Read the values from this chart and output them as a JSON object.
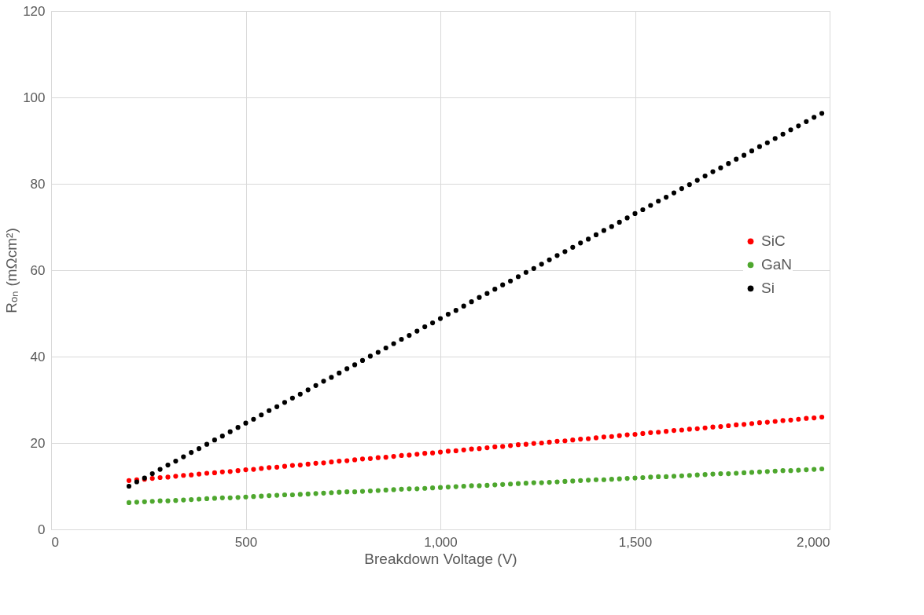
{
  "chart_data": {
    "type": "scatter",
    "xlabel": "Breakdown Voltage (V)",
    "ylabel": "Rₒₙ (mΩcm²)",
    "x": [
      200,
      220,
      240,
      260,
      280,
      300,
      320,
      340,
      360,
      380,
      400,
      420,
      440,
      460,
      480,
      500,
      520,
      540,
      560,
      580,
      600,
      620,
      640,
      660,
      680,
      700,
      720,
      740,
      760,
      780,
      800,
      820,
      840,
      860,
      880,
      900,
      920,
      940,
      960,
      980,
      1000,
      1020,
      1040,
      1060,
      1080,
      1100,
      1120,
      1140,
      1160,
      1180,
      1200,
      1220,
      1240,
      1260,
      1280,
      1300,
      1320,
      1340,
      1360,
      1380,
      1400,
      1420,
      1440,
      1460,
      1480,
      1500,
      1520,
      1540,
      1560,
      1580,
      1600,
      1620,
      1640,
      1660,
      1680,
      1700,
      1720,
      1740,
      1760,
      1780,
      1800,
      1820,
      1840,
      1860,
      1880,
      1900,
      1920,
      1940,
      1960,
      1980
    ],
    "series": [
      {
        "name": "SiC",
        "color": "#ff0000",
        "values": [
          11.3,
          11.5,
          11.6,
          11.8,
          12.0,
          12.1,
          12.3,
          12.5,
          12.6,
          12.8,
          13.0,
          13.1,
          13.3,
          13.4,
          13.6,
          13.8,
          13.9,
          14.1,
          14.3,
          14.4,
          14.6,
          14.8,
          14.9,
          15.1,
          15.3,
          15.4,
          15.6,
          15.8,
          15.9,
          16.1,
          16.3,
          16.4,
          16.6,
          16.7,
          16.9,
          17.1,
          17.2,
          17.4,
          17.6,
          17.7,
          17.9,
          18.1,
          18.2,
          18.4,
          18.6,
          18.7,
          18.9,
          19.1,
          19.2,
          19.4,
          19.6,
          19.7,
          19.9,
          20.0,
          20.2,
          20.4,
          20.5,
          20.7,
          20.9,
          21.0,
          21.2,
          21.4,
          21.5,
          21.7,
          21.9,
          22.0,
          22.2,
          22.4,
          22.5,
          22.7,
          22.9,
          23.0,
          23.2,
          23.3,
          23.5,
          23.7,
          23.8,
          24.0,
          24.2,
          24.3,
          24.5,
          24.7,
          24.8,
          25.0,
          25.2,
          25.3,
          25.5,
          25.7,
          25.8,
          26.0
        ]
      },
      {
        "name": "GaN",
        "color": "#4ea72e",
        "values": [
          6.2,
          6.3,
          6.4,
          6.5,
          6.6,
          6.6,
          6.7,
          6.8,
          6.9,
          7.0,
          7.1,
          7.2,
          7.3,
          7.3,
          7.4,
          7.5,
          7.6,
          7.7,
          7.8,
          7.9,
          8.0,
          8.0,
          8.1,
          8.2,
          8.3,
          8.4,
          8.5,
          8.6,
          8.7,
          8.7,
          8.8,
          8.9,
          9.0,
          9.1,
          9.2,
          9.3,
          9.4,
          9.4,
          9.5,
          9.6,
          9.7,
          9.8,
          9.9,
          10.0,
          10.1,
          10.1,
          10.2,
          10.3,
          10.4,
          10.5,
          10.6,
          10.7,
          10.8,
          10.8,
          10.9,
          11.0,
          11.1,
          11.2,
          11.3,
          11.4,
          11.5,
          11.5,
          11.6,
          11.7,
          11.8,
          11.9,
          12.0,
          12.1,
          12.2,
          12.2,
          12.3,
          12.4,
          12.5,
          12.6,
          12.7,
          12.8,
          12.9,
          12.9,
          13.0,
          13.1,
          13.2,
          13.3,
          13.4,
          13.5,
          13.6,
          13.6,
          13.7,
          13.8,
          13.9,
          14.0
        ]
      },
      {
        "name": "Si",
        "color": "#000000",
        "values": [
          10.0,
          11.0,
          11.9,
          12.9,
          13.9,
          14.9,
          15.8,
          16.8,
          17.8,
          18.7,
          19.7,
          20.7,
          21.6,
          22.6,
          23.6,
          24.6,
          25.5,
          26.5,
          27.5,
          28.4,
          29.4,
          30.4,
          31.3,
          32.3,
          33.3,
          34.3,
          35.2,
          36.2,
          37.2,
          38.1,
          39.1,
          40.1,
          41.0,
          42.0,
          43.0,
          44.0,
          44.9,
          45.9,
          46.9,
          47.8,
          48.8,
          49.8,
          50.7,
          51.7,
          52.7,
          53.7,
          54.6,
          55.6,
          56.6,
          57.5,
          58.5,
          59.5,
          60.4,
          61.4,
          62.4,
          63.4,
          64.3,
          65.3,
          66.3,
          67.2,
          68.2,
          69.2,
          70.1,
          71.1,
          72.1,
          73.1,
          74.0,
          75.0,
          76.0,
          76.9,
          77.9,
          78.9,
          79.8,
          80.8,
          81.8,
          82.8,
          83.7,
          84.7,
          85.7,
          86.6,
          87.6,
          88.6,
          89.5,
          90.5,
          91.5,
          92.5,
          93.4,
          94.4,
          95.4,
          96.3
        ]
      }
    ],
    "xlim": [
      0,
      2000
    ],
    "xticks": [
      0,
      500,
      {
        "value": 1000,
        "label": "1,000"
      },
      {
        "value": 1500,
        "label": "1,500"
      },
      {
        "value": 2000,
        "label": "2,000"
      }
    ],
    "ylim": [
      0,
      120
    ],
    "yticks": [
      0,
      20,
      40,
      60,
      80,
      100,
      120
    ],
    "grid": true,
    "legend": "right",
    "marker": "circle"
  }
}
